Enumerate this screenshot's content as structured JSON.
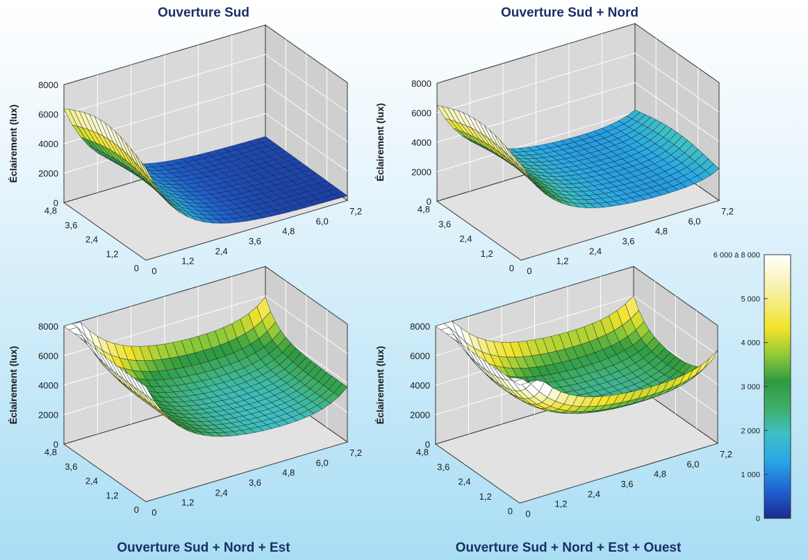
{
  "chart_data": [
    {
      "type": "surface3d",
      "title": "Ouverture Sud",
      "zlabel": "Éclairement (lux)",
      "zlim": [
        0,
        8000
      ],
      "z_ticks": [
        "0",
        "2000",
        "4000",
        "6000",
        "8000"
      ],
      "x_ticks": [
        "0",
        "1,2",
        "2,4",
        "3,6",
        "4,8",
        "6,0",
        "7,2"
      ],
      "y_ticks": [
        "0",
        "1,2",
        "2,4",
        "3,6",
        "4,8"
      ],
      "x_range_m": [
        0,
        7.2
      ],
      "y_range_m": [
        0,
        4.8
      ],
      "openings": [
        "Sud"
      ],
      "peak_lux": 7600
    },
    {
      "type": "surface3d",
      "title": "Ouverture Sud + Nord",
      "zlabel": "Éclairement (lux)",
      "zlim": [
        0,
        8000
      ],
      "z_ticks": [
        "0",
        "2000",
        "4000",
        "6000",
        "8000"
      ],
      "x_ticks": [
        "0",
        "1,2",
        "2,4",
        "3,6",
        "4,8",
        "6,0",
        "7,2"
      ],
      "y_ticks": [
        "0",
        "1,2",
        "2,4",
        "3,6",
        "4,8"
      ],
      "x_range_m": [
        0,
        7.2
      ],
      "y_range_m": [
        0,
        4.8
      ],
      "openings": [
        "Sud",
        "Nord"
      ],
      "peak_lux": 7500
    },
    {
      "type": "surface3d",
      "title": "Ouverture Sud + Nord + Est",
      "zlabel": "Éclairement (lux)",
      "zlim": [
        0,
        8000
      ],
      "z_ticks": [
        "0",
        "2000",
        "4000",
        "6000",
        "8000"
      ],
      "x_ticks": [
        "0",
        "1,2",
        "2,4",
        "3,6",
        "4,8",
        "6,0",
        "7,2"
      ],
      "y_ticks": [
        "0",
        "1,2",
        "2,4",
        "3,6",
        "4,8"
      ],
      "x_range_m": [
        0,
        7.2
      ],
      "y_range_m": [
        0,
        4.8
      ],
      "openings": [
        "Sud",
        "Nord",
        "Est"
      ],
      "peak_lux": 7700
    },
    {
      "type": "surface3d",
      "title": "Ouverture Sud + Nord + Est + Ouest",
      "zlabel": "Éclairement (lux)",
      "zlim": [
        0,
        8000
      ],
      "z_ticks": [
        "0",
        "2000",
        "4000",
        "6000",
        "8000"
      ],
      "x_ticks": [
        "0",
        "1,2",
        "2,4",
        "3,6",
        "4,8",
        "6,0",
        "7,2"
      ],
      "y_ticks": [
        "0",
        "1,2",
        "2,4",
        "3,6",
        "4,8"
      ],
      "x_range_m": [
        0,
        7.2
      ],
      "y_range_m": [
        0,
        4.8
      ],
      "openings": [
        "Sud",
        "Nord",
        "Est",
        "Ouest"
      ],
      "peak_lux": 7700
    }
  ],
  "colorbar": {
    "labels": [
      "6 000 à 8 000",
      "5 000",
      "4 000",
      "3 000",
      "2 000",
      "1 000",
      "0"
    ],
    "label_values": [
      6000,
      5000,
      4000,
      3000,
      2000,
      1000,
      0
    ],
    "stops": [
      "#1c2a8c",
      "#1f5fcf",
      "#29a8e6",
      "#3fbfc4",
      "#3fae6a",
      "#2f9a3f",
      "#8fca3a",
      "#f2e22a",
      "#f5ef9a",
      "#ffffff"
    ]
  }
}
